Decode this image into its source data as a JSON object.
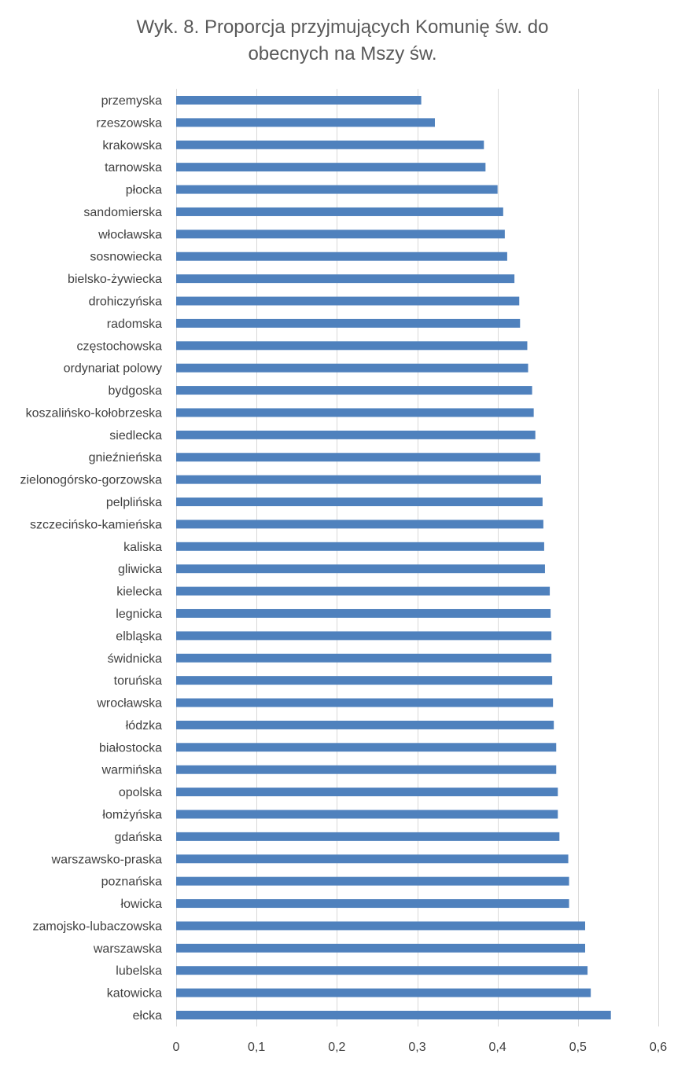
{
  "chart_data": {
    "type": "bar",
    "orientation": "horizontal",
    "title_lines": [
      "Wyk. 8. Proporcja przyjmujących Komunię św. do",
      "obecnych na Mszy św."
    ],
    "xlabel": "",
    "ylabel": "",
    "xlim": [
      0,
      0.6
    ],
    "xticks": [
      0,
      0.1,
      0.2,
      0.3,
      0.4,
      0.5,
      0.6
    ],
    "xtick_labels": [
      "0",
      "0,1",
      "0,2",
      "0,3",
      "0,4",
      "0,5",
      "0,6"
    ],
    "grid": true,
    "legend": "none",
    "bar_color": "#4f81bd",
    "grid_color": "#d9d9d9",
    "categories": [
      "przemyska",
      "rzeszowska",
      "krakowska",
      "tarnowska",
      "płocka",
      "sandomierska",
      "włocławska",
      "sosnowiecka",
      "bielsko-żywiecka",
      "drohiczyńska",
      "radomska",
      "częstochowska",
      "ordynariat polowy",
      "bydgoska",
      "koszalińsko-kołobrzeska",
      "siedlecka",
      "gnieźnieńska",
      "zielonogórsko-gorzowska",
      "pelplińska",
      "szczecińsko-kamieńska",
      "kaliska",
      "gliwicka",
      "kielecka",
      "legnicka",
      "elbląska",
      "świdnicka",
      "toruńska",
      "wrocławska",
      "łódzka",
      "białostocka",
      "warmińska",
      "opolska",
      "łomżyńska",
      "gdańska",
      "warszawsko-praska",
      "poznańska",
      "łowicka",
      "zamojsko-lubaczowska",
      "warszawska",
      "lubelska",
      "katowicka",
      "ełcka"
    ],
    "values": [
      0.305,
      0.322,
      0.383,
      0.385,
      0.4,
      0.407,
      0.409,
      0.412,
      0.421,
      0.427,
      0.428,
      0.437,
      0.438,
      0.443,
      0.445,
      0.447,
      0.453,
      0.454,
      0.456,
      0.457,
      0.458,
      0.459,
      0.465,
      0.466,
      0.467,
      0.467,
      0.468,
      0.469,
      0.47,
      0.473,
      0.473,
      0.475,
      0.475,
      0.477,
      0.488,
      0.489,
      0.489,
      0.509,
      0.509,
      0.512,
      0.516,
      0.541
    ]
  }
}
